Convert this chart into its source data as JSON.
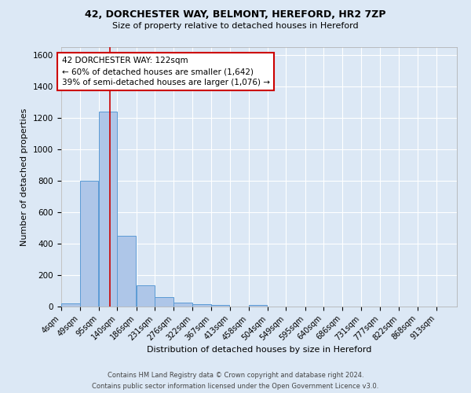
{
  "title1": "42, DORCHESTER WAY, BELMONT, HEREFORD, HR2 7ZP",
  "title2": "Size of property relative to detached houses in Hereford",
  "xlabel": "Distribution of detached houses by size in Hereford",
  "ylabel": "Number of detached properties",
  "footer1": "Contains HM Land Registry data © Crown copyright and database right 2024.",
  "footer2": "Contains public sector information licensed under the Open Government Licence v3.0.",
  "annotation_line1": "42 DORCHESTER WAY: 122sqm",
  "annotation_line2": "← 60% of detached houses are smaller (1,642)",
  "annotation_line3": "39% of semi-detached houses are larger (1,076) →",
  "property_sqm": 122,
  "bar_labels": [
    "4sqm",
    "49sqm",
    "95sqm",
    "140sqm",
    "186sqm",
    "231sqm",
    "276sqm",
    "322sqm",
    "367sqm",
    "413sqm",
    "458sqm",
    "504sqm",
    "549sqm",
    "595sqm",
    "640sqm",
    "686sqm",
    "731sqm",
    "777sqm",
    "822sqm",
    "868sqm",
    "913sqm"
  ],
  "bar_values": [
    22,
    800,
    1240,
    450,
    135,
    60,
    25,
    15,
    10,
    0,
    10,
    0,
    0,
    0,
    0,
    0,
    0,
    0,
    0,
    0,
    0
  ],
  "bar_left_edges": [
    4,
    49,
    95,
    140,
    186,
    231,
    276,
    322,
    367,
    413,
    458,
    504,
    549,
    595,
    640,
    686,
    731,
    777,
    822,
    868,
    913
  ],
  "bin_width": 45,
  "bar_color": "#aec6e8",
  "bar_edge_color": "#5b9bd5",
  "vline_x": 122,
  "vline_color": "#cc0000",
  "ylim": [
    0,
    1650
  ],
  "yticks": [
    0,
    200,
    400,
    600,
    800,
    1000,
    1200,
    1400,
    1600
  ],
  "background_color": "#dce8f5",
  "grid_color": "#ffffff",
  "annotation_box_color": "#ffffff",
  "annotation_box_edge": "#cc0000",
  "title1_fontsize": 9,
  "title2_fontsize": 8,
  "ylabel_fontsize": 8,
  "xlabel_fontsize": 8,
  "tick_fontsize": 7,
  "footer_fontsize": 6,
  "ann_fontsize": 7.5
}
